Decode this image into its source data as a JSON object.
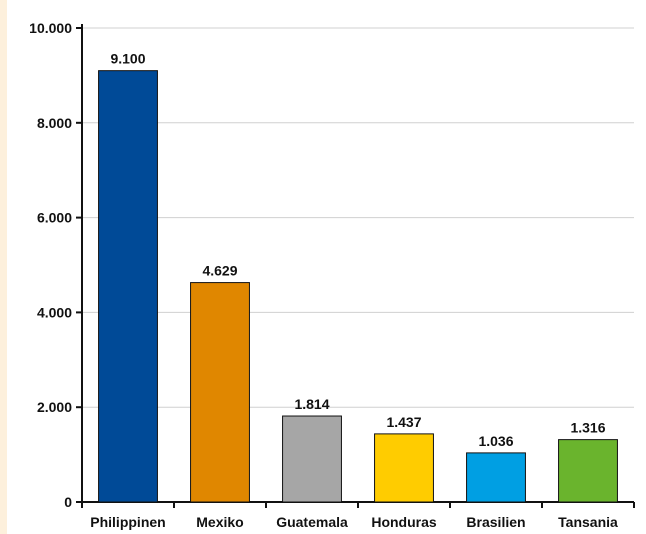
{
  "chart_data": {
    "type": "bar",
    "categories": [
      "Philippinen",
      "Mexiko",
      "Guatemala",
      "Honduras",
      "Brasilien",
      "Tansania"
    ],
    "values": [
      9100,
      4629,
      1814,
      1437,
      1036,
      1316
    ],
    "data_labels": [
      "9.100",
      "4.629",
      "1.814",
      "1.437",
      "1.036",
      "1.316"
    ],
    "colors": [
      "#004a97",
      "#e08700",
      "#a6a6a6",
      "#ffcc00",
      "#009fe3",
      "#6ab42d"
    ],
    "ylim": [
      0,
      10000
    ],
    "yticks": [
      {
        "value": 0,
        "label": "0"
      },
      {
        "value": 2000,
        "label": "2.000"
      },
      {
        "value": 4000,
        "label": "4.000"
      },
      {
        "value": 6000,
        "label": "6.000"
      },
      {
        "value": 8000,
        "label": "8.000"
      },
      {
        "value": 10000,
        "label": "10.000"
      }
    ],
    "grid": true,
    "title": "",
    "xlabel": "",
    "ylabel": ""
  }
}
